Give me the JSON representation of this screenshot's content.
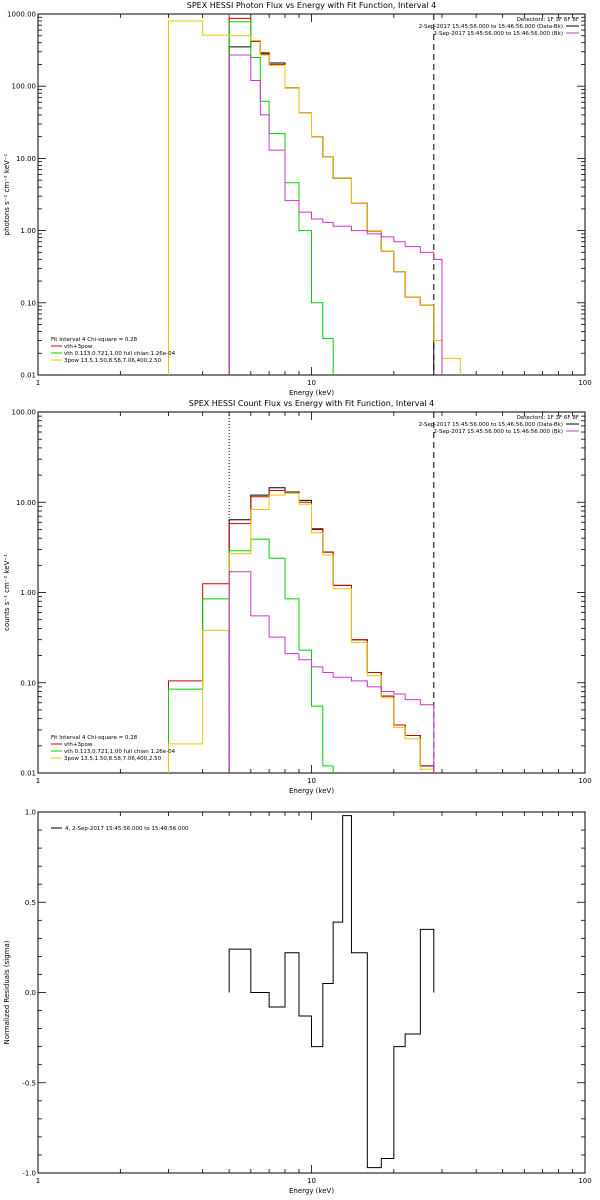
{
  "colors": {
    "data": "#000000",
    "vth+3pow": "#d00000",
    "vth": "#00d000",
    "3pow": "#e6c800",
    "bk": "#cc33cc"
  },
  "chart_data": [
    {
      "type": "line",
      "title": "SPEX HESSI Photon Flux vs Energy with Fit Function, Interval 4",
      "xlabel": "Energy (keV)",
      "ylabel": "photons s^-1 cm^-2 keV^-1",
      "x_scale": "log",
      "y_scale": "log",
      "xlim": [
        1,
        100
      ],
      "ylim": [
        0.01,
        1000
      ],
      "x_ticks": [
        "1",
        "10",
        "100"
      ],
      "y_ticks": [
        "0.01",
        "0.10",
        "1.00",
        "10.00",
        "100.00",
        "1000.00"
      ],
      "vlines": [
        {
          "x": 5,
          "style": "solid",
          "color": "#cc33cc"
        },
        {
          "x": 28,
          "style": "dashed",
          "color": "#000000"
        }
      ],
      "legend_top_right": {
        "detectors": "Detectors: 1F 3F 6F 8F",
        "entries": [
          {
            "text": "2-Sep-2017 15:45:56.000 to 15:46:56.000 (Data-Bk)",
            "color": "#000000"
          },
          {
            "text": "2-Sep-2017 15:45:56.000 to 15:46:56.000 (Bk)",
            "color": "#cc33cc"
          }
        ]
      },
      "legend_bottom_left": {
        "header": "Fit Interval 4   Chi-square = 0.28",
        "entries": [
          {
            "text": "vth+3pow",
            "color": "#d00000"
          },
          {
            "text": "vth 0.113,0.721,1.00  full chian 1.26e-04",
            "color": "#00d000"
          },
          {
            "text": "3pow 13.5,1.50,8.58,7.06,400,2.50",
            "color": "#e6c800"
          }
        ]
      },
      "edges": [
        3,
        4,
        5,
        5.5,
        6,
        6.5,
        7,
        8,
        9,
        10,
        11,
        12,
        14,
        16,
        18,
        20,
        22,
        25,
        28,
        30,
        35
      ],
      "series": [
        {
          "name": "data",
          "color": "#000000",
          "values": [
            null,
            null,
            350,
            350,
            420,
            280,
            210,
            95,
            43,
            20,
            10.5,
            5.3,
            2.4,
            0.98,
            0.52,
            0.27,
            0.12,
            0.093,
            null,
            null
          ]
        },
        {
          "name": "vth+3pow",
          "color": "#d00000",
          "values": [
            null,
            null,
            870,
            870,
            420,
            290,
            200,
            95,
            43,
            20,
            10.5,
            5.3,
            2.4,
            0.98,
            0.52,
            0.27,
            0.12,
            0.093,
            0.03,
            null
          ]
        },
        {
          "name": "vth",
          "color": "#00d000",
          "values": [
            null,
            null,
            780,
            780,
            250,
            62,
            22,
            4.6,
            1.0,
            0.1,
            0.032,
            null,
            null,
            null,
            null,
            null,
            null,
            null,
            null,
            null
          ]
        },
        {
          "name": "3pow",
          "color": "#e6c800",
          "values": [
            800,
            510,
            500,
            500,
            430,
            270,
            195,
            95,
            43,
            20,
            10.5,
            5.3,
            2.4,
            0.98,
            0.52,
            0.27,
            0.12,
            0.093,
            0.03,
            0.017
          ]
        },
        {
          "name": "bk",
          "color": "#cc33cc",
          "values": [
            null,
            null,
            270,
            270,
            120,
            40,
            13,
            2.6,
            1.8,
            1.45,
            1.3,
            1.15,
            1.0,
            0.9,
            0.82,
            0.7,
            0.6,
            0.5,
            0.4,
            null
          ]
        }
      ]
    },
    {
      "type": "line",
      "title": "SPEX HESSI Count Flux vs Energy with Fit Function, Interval 4",
      "xlabel": "Energy (keV)",
      "ylabel": "counts s^-1 cm^-2 keV^-1",
      "x_scale": "log",
      "y_scale": "log",
      "xlim": [
        1,
        100
      ],
      "ylim": [
        0.01,
        100
      ],
      "x_ticks": [
        "1",
        "10",
        "100"
      ],
      "y_ticks": [
        "0.01",
        "0.10",
        "1.00",
        "10.00",
        "100.00"
      ],
      "vlines": [
        {
          "x": 5,
          "style": "dotted",
          "color": "#000000"
        },
        {
          "x": 28,
          "style": "dashed",
          "color": "#000000"
        }
      ],
      "legend_top_right": {
        "detectors": "Detectors: 1F 3F 6F 8F",
        "entries": [
          {
            "text": "2-Sep-2017 15:45:56.000 to 15:46:56.000 (Data-Bk)",
            "color": "#000000"
          },
          {
            "text": "2-Sep-2017 15:45:56.000 to 15:46:56.000 (Bk)",
            "color": "#cc33cc"
          }
        ]
      },
      "legend_bottom_left": {
        "header": "Fit Interval 4   Chi-square = 0.28",
        "entries": [
          {
            "text": "vth+3pow",
            "color": "#d00000"
          },
          {
            "text": "vth 0.113,0.721,1.00  full chian 1.26e-04",
            "color": "#00d000"
          },
          {
            "text": "3pow 13.5,1.50,8.58,7.06,400,2.50",
            "color": "#e6c800"
          }
        ]
      },
      "edges": [
        3,
        4,
        5,
        6,
        7,
        8,
        9,
        10,
        11,
        12,
        14,
        16,
        18,
        20,
        22,
        25,
        28
      ],
      "series": [
        {
          "name": "data",
          "color": "#000000",
          "values": [
            null,
            null,
            6.4,
            12.0,
            14.5,
            13.0,
            10.5,
            5.0,
            2.8,
            1.2,
            0.3,
            0.13,
            0.071,
            0.034,
            0.026,
            0.012
          ]
        },
        {
          "name": "vth+3pow",
          "color": "#d00000",
          "values": [
            0.105,
            1.25,
            5.8,
            11.5,
            13.5,
            12.5,
            10.0,
            5.1,
            2.8,
            1.2,
            0.3,
            0.13,
            0.071,
            0.034,
            0.026,
            0.012
          ]
        },
        {
          "name": "vth",
          "color": "#00d000",
          "values": [
            0.085,
            0.85,
            2.9,
            3.9,
            2.4,
            0.85,
            0.23,
            0.055,
            0.012,
            null,
            null,
            null,
            null,
            null,
            null,
            null
          ]
        },
        {
          "name": "3pow",
          "color": "#e6c800",
          "values": [
            0.021,
            0.38,
            2.7,
            8.3,
            12.0,
            12.5,
            9.5,
            4.6,
            2.6,
            1.1,
            0.28,
            0.12,
            0.068,
            0.032,
            0.024,
            0.011
          ]
        },
        {
          "name": "bk",
          "color": "#cc33cc",
          "values": [
            null,
            null,
            1.7,
            0.55,
            0.32,
            0.21,
            0.18,
            0.15,
            0.13,
            0.115,
            0.105,
            0.09,
            0.08,
            0.075,
            0.065,
            0.057
          ]
        }
      ]
    },
    {
      "type": "line",
      "title": "",
      "xlabel": "Energy (keV)",
      "ylabel": "Normalized Residuals (sigma)",
      "x_scale": "log",
      "y_scale": "linear",
      "xlim": [
        1,
        100
      ],
      "ylim": [
        -1.0,
        1.0
      ],
      "x_ticks": [
        "1",
        "10",
        "100"
      ],
      "y_ticks": [
        "-1.0",
        "-0.5",
        "0.0",
        "0.5",
        "1.0"
      ],
      "legend_text": "4,  2-Sep-2017 15:45:56.000 to 15:46:56.000",
      "edges": [
        5,
        6,
        7,
        8,
        9,
        10,
        11,
        12,
        13,
        14,
        16,
        18,
        20,
        22,
        25,
        28
      ],
      "series": [
        {
          "name": "residuals",
          "color": "#000000",
          "values": [
            0.24,
            0.0,
            -0.08,
            0.22,
            -0.13,
            -0.3,
            0.05,
            0.39,
            0.98,
            0.22,
            -0.97,
            -0.92,
            -0.3,
            -0.23,
            0.35
          ]
        }
      ]
    }
  ]
}
